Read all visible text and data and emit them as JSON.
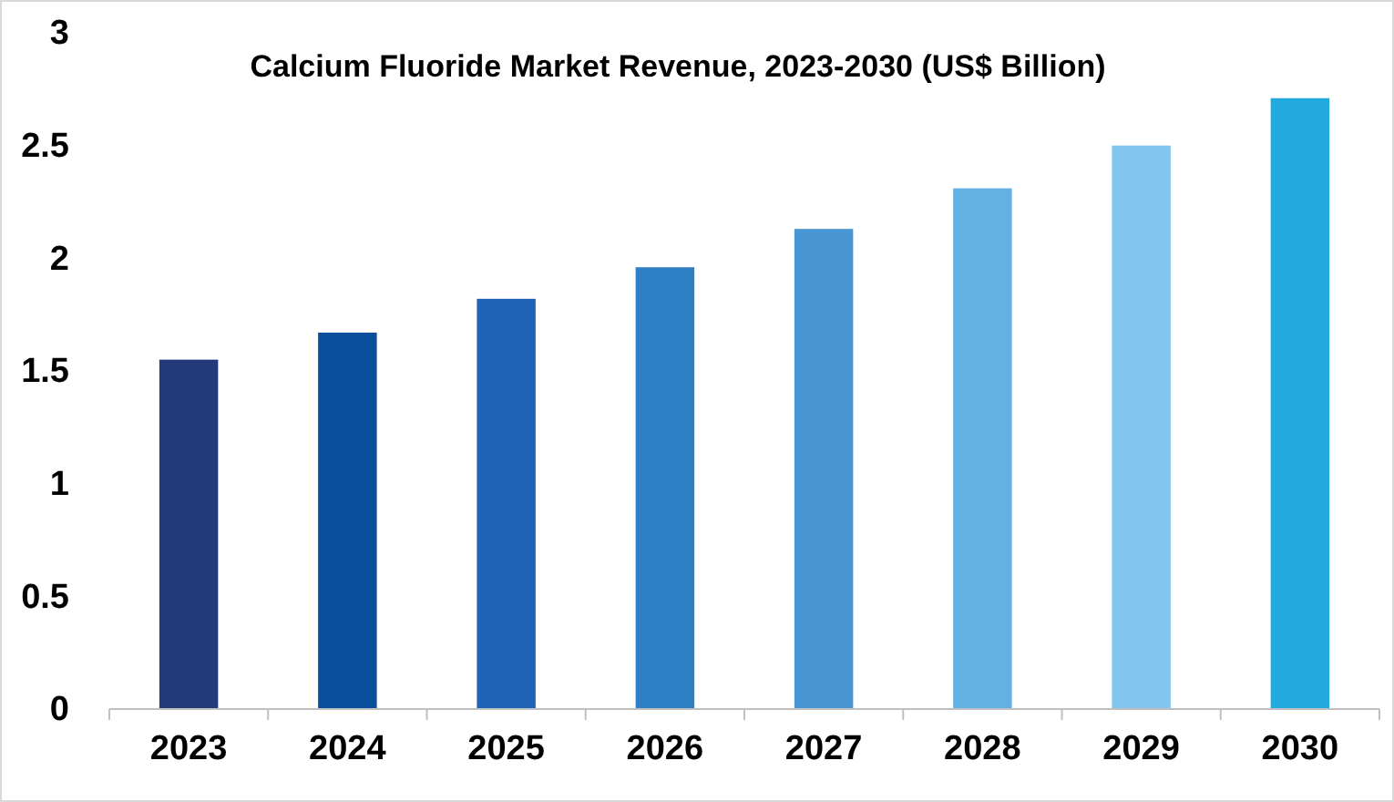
{
  "chart_data": {
    "type": "bar",
    "title": "Calcium Fluoride Market Revenue, 2023-2030 (US$ Billion)",
    "categories": [
      "2023",
      "2024",
      "2025",
      "2026",
      "2027",
      "2028",
      "2029",
      "2030"
    ],
    "values": [
      1.55,
      1.67,
      1.82,
      1.96,
      2.13,
      2.31,
      2.5,
      2.71
    ],
    "colors": [
      "#233a78",
      "#0a4f9c",
      "#1f64b4",
      "#2f7fc4",
      "#4897d4",
      "#63b1e3",
      "#82c6ee",
      "#22aadf"
    ],
    "ylim": [
      0,
      3
    ],
    "yticks": [
      0,
      0.5,
      1,
      1.5,
      2,
      2.5,
      3
    ],
    "grid": false
  }
}
